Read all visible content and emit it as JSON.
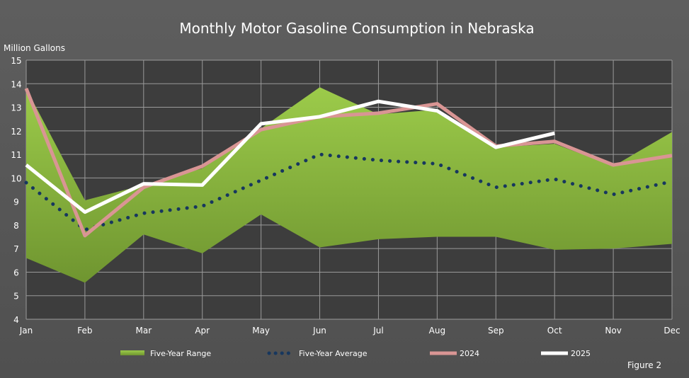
{
  "chart_data": {
    "type": "line",
    "title": "Monthly Motor Gasoline Consumption in Nebraska",
    "ylabel": "Million Gallons",
    "xlabel": "",
    "ylim": [
      4,
      15
    ],
    "yticks": [
      4,
      5,
      6,
      7,
      8,
      9,
      10,
      11,
      12,
      13,
      14,
      15
    ],
    "grid": true,
    "legend_placement": "bottom",
    "categories": [
      "Jan",
      "Feb",
      "Mar",
      "Apr",
      "May",
      "Jun",
      "Jul",
      "Aug",
      "Sep",
      "Oct",
      "Nov",
      "Dec"
    ],
    "range": {
      "name": "Five-Year Range",
      "color": "#8ab83e",
      "upper": [
        13.8,
        9.05,
        9.7,
        10.4,
        12.1,
        13.85,
        12.7,
        12.9,
        11.3,
        11.45,
        10.5,
        11.95
      ],
      "lower": [
        6.6,
        5.55,
        7.6,
        6.8,
        8.45,
        7.05,
        7.4,
        7.5,
        7.5,
        6.95,
        7.0,
        7.2
      ]
    },
    "series": [
      {
        "name": "Five-Year Average",
        "color": "#17375e",
        "style": "dotted",
        "values": [
          9.8,
          7.8,
          8.5,
          8.8,
          9.9,
          11.0,
          10.75,
          10.6,
          9.6,
          9.95,
          9.3,
          9.85
        ]
      },
      {
        "name": "2024",
        "color": "#d99594",
        "style": "solid",
        "values": [
          13.8,
          7.55,
          9.6,
          10.5,
          12.05,
          12.6,
          12.75,
          13.15,
          11.35,
          11.55,
          10.55,
          10.95
        ]
      },
      {
        "name": "2025",
        "color": "#ffffff",
        "style": "solid",
        "values": [
          10.55,
          8.55,
          9.75,
          9.7,
          12.3,
          12.6,
          13.25,
          12.85,
          11.3,
          11.9,
          null,
          null
        ]
      }
    ]
  },
  "footer": {
    "figure_label": "Figure 2"
  }
}
